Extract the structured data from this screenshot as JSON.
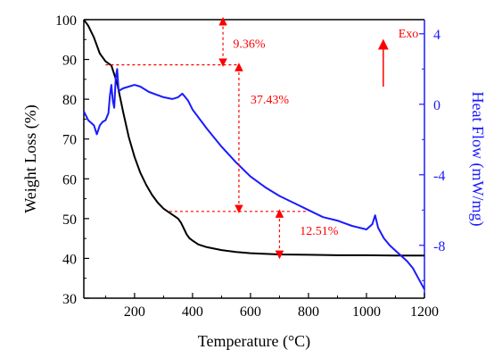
{
  "chart_data": {
    "type": "line",
    "xlabel": "Temperature (°C)",
    "ylabel_left": "Weight Loss (%)",
    "ylabel_right": "Heat Flow (mW/mg)",
    "xlim": [
      25,
      1200
    ],
    "ylim_left": [
      30,
      100
    ],
    "ylim_right": [
      -11,
      4.8
    ],
    "x_ticks": [
      200,
      400,
      600,
      800,
      1000,
      1200
    ],
    "y_left_ticks": [
      30,
      40,
      50,
      60,
      70,
      80,
      90,
      100
    ],
    "y_right_ticks": [
      4,
      0,
      -4,
      -8
    ],
    "grid": false,
    "colors": {
      "weight": "#000000",
      "heat": "#1a1aff",
      "annotation": "#ff0000"
    },
    "series": [
      {
        "axis": "left",
        "x": [
          25,
          40,
          60,
          80,
          100,
          120,
          140,
          160,
          180,
          200,
          220,
          240,
          260,
          280,
          300,
          320,
          340,
          350,
          360,
          370,
          380,
          390,
          400,
          420,
          450,
          500,
          550,
          600,
          700,
          800,
          900,
          1000,
          1100,
          1200
        ],
        "y": [
          100,
          98.5,
          95.5,
          91.5,
          89.5,
          88.5,
          84,
          77,
          70.5,
          65.5,
          61.5,
          58.5,
          56,
          54,
          52.5,
          51.5,
          50.5,
          50,
          49,
          47.5,
          46,
          45,
          44.5,
          43.5,
          42.8,
          42.1,
          41.6,
          41.3,
          41.0,
          40.9,
          40.8,
          40.8,
          40.7,
          40.7
        ]
      },
      {
        "axis": "right",
        "x": [
          25,
          40,
          60,
          70,
          80,
          90,
          100,
          110,
          115,
          120,
          125,
          130,
          135,
          140,
          145,
          150,
          160,
          180,
          200,
          220,
          250,
          300,
          330,
          350,
          365,
          375,
          385,
          400,
          450,
          500,
          550,
          600,
          650,
          700,
          750,
          800,
          850,
          900,
          950,
          1000,
          1020,
          1030,
          1040,
          1060,
          1080,
          1100,
          1120,
          1140,
          1160,
          1180,
          1200
        ],
        "y": [
          -0.4,
          -0.9,
          -1.2,
          -1.7,
          -1.2,
          -1.0,
          -0.9,
          -0.5,
          0.5,
          1.1,
          0.2,
          -0.2,
          1.5,
          2.0,
          0.8,
          0.8,
          0.9,
          1.0,
          1.1,
          1.0,
          0.7,
          0.4,
          0.3,
          0.4,
          0.6,
          0.4,
          0.2,
          -0.3,
          -1.4,
          -2.4,
          -3.3,
          -4.1,
          -4.7,
          -5.2,
          -5.6,
          -6.0,
          -6.4,
          -6.6,
          -6.9,
          -7.1,
          -6.8,
          -6.3,
          -7.0,
          -7.6,
          -8.0,
          -8.3,
          -8.6,
          -8.9,
          -9.3,
          -9.9,
          -10.5
        ]
      }
    ],
    "annotations": [
      {
        "text": "9.36%",
        "x": 540,
        "y": 94
      },
      {
        "text": "37.43%",
        "x": 600,
        "y": 80
      },
      {
        "text": "12.51%",
        "x": 770,
        "y": 47
      },
      {
        "text": "Exo",
        "x": 1110,
        "y": 4
      }
    ]
  }
}
